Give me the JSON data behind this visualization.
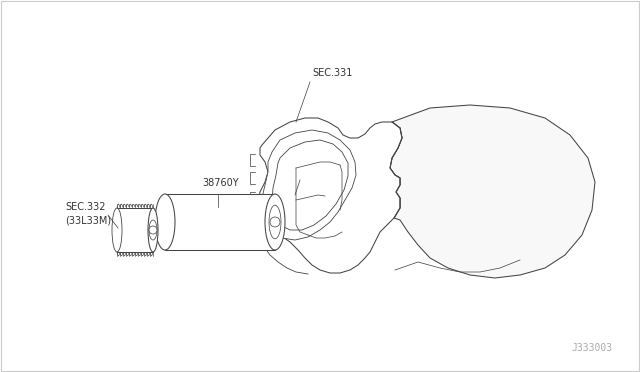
{
  "background_color": "#ffffff",
  "border_color": "#cccccc",
  "fig_width": 6.4,
  "fig_height": 3.72,
  "footer_text": "J333003",
  "footer_color": "#aaaaaa",
  "footer_fontsize": 7,
  "label_sec331": "SEC.331",
  "label_38760y": "38760Y",
  "label_sec332": "SEC.332\n(33L33M)",
  "line_color": "#444444",
  "text_color": "#333333",
  "label_fontsize": 7.0,
  "lw": 0.75
}
